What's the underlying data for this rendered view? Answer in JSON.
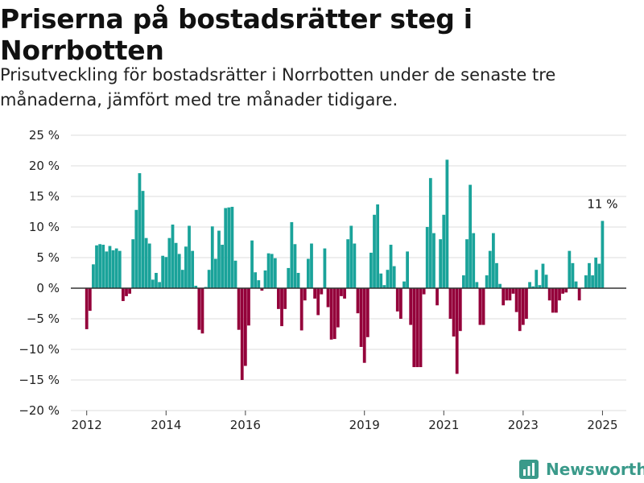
{
  "header": {
    "title": "Priserna på bostadsrätter steg i Norrbotten",
    "subtitle": "Prisutveckling för bostadsrätter i Norrbotten under de senaste tre månaderna, jämfört med tre månader tidigare."
  },
  "brand": {
    "name": "Newsworthy",
    "logo_icon": "newsworthy-logo-icon",
    "color": "#3a9a8a"
  },
  "colors": {
    "positive": "#1aa39a",
    "negative": "#94003a",
    "grid": "#dddddd",
    "zero_line": "#333333"
  },
  "chart_data": {
    "type": "bar",
    "unit": "%",
    "ylim": [
      -20,
      25
    ],
    "y_ticks": [
      25,
      20,
      15,
      10,
      5,
      0,
      -5,
      -10,
      -15,
      -20
    ],
    "y_tick_labels": [
      "25 %",
      "20 %",
      "15 %",
      "10 %",
      "5 %",
      "0 %",
      "−5 %",
      "−10 %",
      "−15 %",
      "−20 %"
    ],
    "x_ticks": [
      "2012",
      "2014",
      "2016",
      "2019",
      "2021",
      "2023",
      "2025"
    ],
    "x_tick_positions": [
      2012,
      2014,
      2016,
      2019,
      2021,
      2023,
      2025
    ],
    "xlim": [
      2011.6,
      2025.6
    ],
    "x_start": 2012.0,
    "x_step": 0.08333,
    "grid": true,
    "annotation": {
      "text": "11 %",
      "x": 2025.0,
      "value": 11
    },
    "values": [
      -6.7,
      -3.7,
      3.9,
      7.0,
      7.2,
      7.1,
      6.0,
      6.9,
      6.2,
      6.5,
      6.1,
      -2.1,
      -1.3,
      -0.9,
      8.0,
      12.8,
      18.8,
      15.9,
      8.2,
      7.3,
      1.4,
      2.5,
      1.0,
      5.3,
      5.1,
      8.2,
      10.4,
      7.4,
      5.6,
      3.0,
      6.8,
      10.2,
      6.1,
      0.4,
      -6.8,
      -7.4,
      0.2,
      3.0,
      10.1,
      4.8,
      9.4,
      7.1,
      13.1,
      13.2,
      13.3,
      4.5,
      -6.8,
      -15.0,
      -12.7,
      -6.1,
      7.8,
      2.6,
      1.3,
      -0.4,
      2.9,
      5.7,
      5.6,
      4.9,
      -3.4,
      -6.2,
      -3.4,
      3.3,
      10.8,
      7.2,
      2.5,
      -6.9,
      -2.0,
      4.8,
      7.3,
      -1.7,
      -4.4,
      -1.0,
      6.5,
      -3.1,
      -8.4,
      -8.3,
      -6.4,
      -1.3,
      -1.7,
      8.0,
      10.2,
      7.3,
      -4.1,
      -9.6,
      -12.2,
      -8.0,
      5.8,
      12.0,
      13.7,
      2.4,
      0.5,
      3.0,
      7.1,
      3.6,
      -3.8,
      -5.0,
      1.1,
      6.0,
      -6.0,
      -12.9,
      -12.9,
      -12.9,
      -1.0,
      10.0,
      18.0,
      9.0,
      -2.8,
      8.0,
      12.0,
      21.0,
      -5.0,
      -7.9,
      -14.0,
      -7.0,
      2.1,
      8.0,
      16.9,
      9.0,
      1.0,
      -6.0,
      -6.0,
      2.1,
      6.1,
      9.0,
      4.1,
      0.7,
      -2.8,
      -2.0,
      -2.0,
      -0.9,
      -3.9,
      -7.0,
      -6.0,
      -5.0,
      1.0,
      0.3,
      3.0,
      0.5,
      4.0,
      2.2,
      -2.0,
      -4.0,
      -4.0,
      -2.0,
      -0.9,
      -0.7,
      6.1,
      4.1,
      1.1,
      -2.0,
      0.1,
      2.1,
      4.1,
      2.1,
      5.0,
      4.0,
      11.0
    ]
  }
}
